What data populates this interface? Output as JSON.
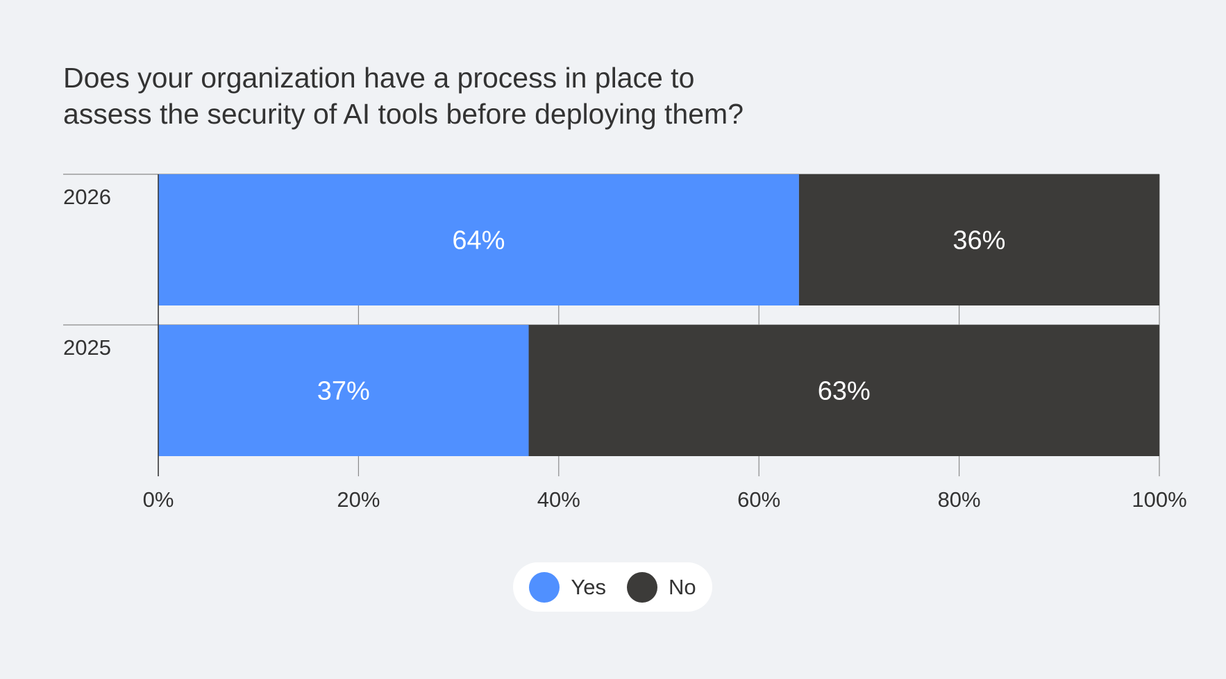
{
  "chart_data": {
    "type": "bar",
    "orientation": "horizontal",
    "stacked": true,
    "title_lines": [
      "Does your organization have a process in place to",
      "assess the security of AI tools before deploying them?"
    ],
    "categories": [
      "2026",
      "2025"
    ],
    "series": [
      {
        "name": "Yes",
        "values": [
          64,
          37
        ],
        "labels": [
          "64%",
          "37%"
        ],
        "color": "#5090ff"
      },
      {
        "name": "No",
        "values": [
          36,
          63
        ],
        "labels": [
          "36%",
          "63%"
        ],
        "color": "#3c3b39"
      }
    ],
    "xlim": [
      0,
      100
    ],
    "xticks": [
      0,
      20,
      40,
      60,
      80,
      100
    ],
    "xtick_labels": [
      "0%",
      "20%",
      "40%",
      "60%",
      "80%",
      "100%"
    ],
    "xlabel": "",
    "ylabel": "",
    "legend": "bottom-center"
  },
  "legend": {
    "items": [
      {
        "label": "Yes",
        "color": "#5090ff"
      },
      {
        "label": "No",
        "color": "#3c3b39"
      }
    ]
  }
}
